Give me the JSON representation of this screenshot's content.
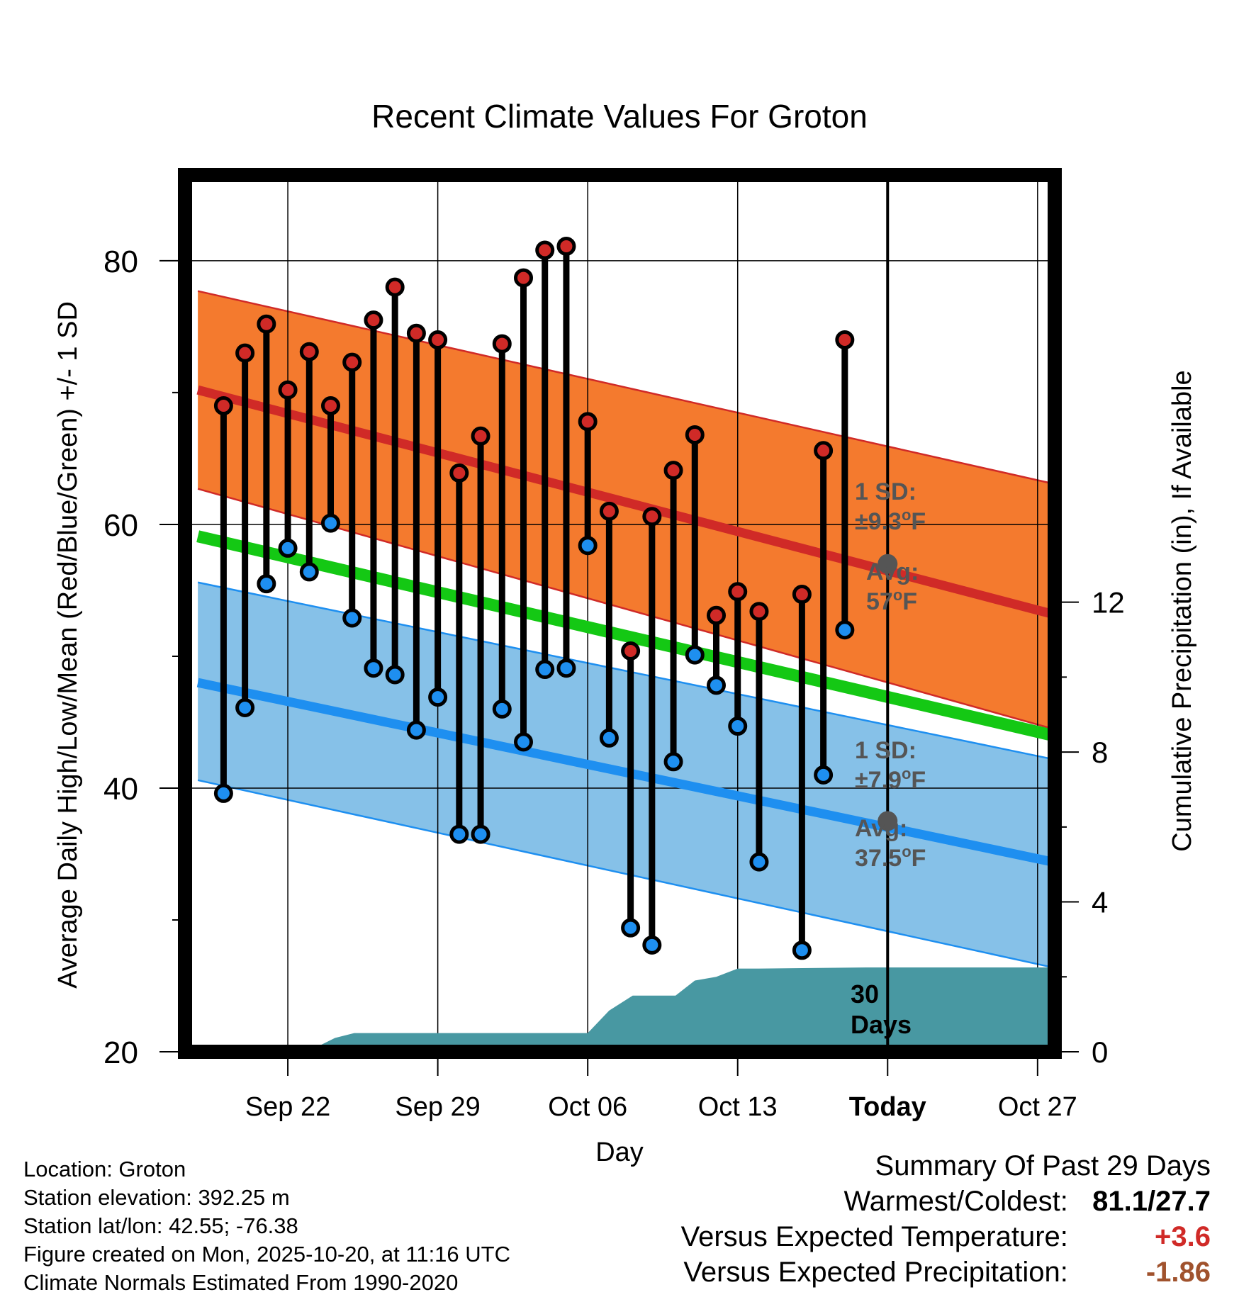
{
  "colors": {
    "high_band": "#f47a2e",
    "high_line": "#d02a27",
    "low_band": "#86c1e8",
    "low_line": "#1e8ff0",
    "mean_line": "#14c814",
    "precip_fill": "#4898a2",
    "high_marker": "#d02a27",
    "low_marker": "#1e8ff0",
    "avg_marker": "#555555",
    "annotation": "#555555",
    "positive": "#d02a27",
    "precip_dev": "#a0522d"
  },
  "chart_data": {
    "type": "line",
    "title": "Recent Climate Values For Groton",
    "xlabel": "Day",
    "ylabel": "Average Daily High/Low/Mean (Red/Blue/Green) +/- 1 SD",
    "y2label": "Cumulative Precipitation (in), If Available",
    "ylim": [
      20,
      86.5
    ],
    "y2lim": [
      0,
      23.4
    ],
    "xlim": [
      -2.8,
      37.8
    ],
    "yticks": [
      "20",
      "40",
      "60",
      "80"
    ],
    "y2ticks": [
      "0",
      "4",
      "8",
      "12"
    ],
    "xticks": [
      {
        "day": 2,
        "label": "Sep 22"
      },
      {
        "day": 9,
        "label": "Sep 29"
      },
      {
        "day": 16,
        "label": "Oct 06"
      },
      {
        "day": 23,
        "label": "Oct 13"
      },
      {
        "day": 30,
        "label": "Today"
      },
      {
        "day": 37,
        "label": "Oct 27"
      }
    ],
    "today_day": 30,
    "normals": {
      "x": [
        -2.2,
        37.7
      ],
      "high_mean": [
        70.2,
        53.2
      ],
      "high_upper": [
        77.7,
        63.1
      ],
      "high_lower": [
        62.7,
        44.5
      ],
      "low_mean": [
        48.0,
        34.4
      ],
      "low_upper": [
        55.6,
        42.2
      ],
      "low_lower": [
        40.6,
        26.4
      ],
      "mean": [
        59.1,
        44.0
      ]
    },
    "observed": {
      "days": [
        -1,
        0,
        1,
        2,
        3,
        4,
        5,
        6,
        7,
        8,
        9,
        10,
        11,
        12,
        13,
        14,
        15,
        16,
        17,
        18,
        19,
        20,
        21,
        22,
        23,
        24,
        25,
        26,
        27,
        28,
        29
      ],
      "high": [
        69.0,
        73.0,
        75.2,
        70.2,
        73.1,
        69.0,
        72.3,
        75.5,
        78.0,
        74.5,
        74.0,
        63.9,
        66.7,
        73.7,
        78.7,
        80.8,
        81.1,
        67.8,
        61.0,
        50.4,
        60.6,
        64.1,
        66.8,
        53.1,
        54.9,
        53.4,
        null,
        54.7,
        65.6,
        74.0,
        null
      ],
      "low": [
        39.6,
        46.1,
        55.5,
        58.2,
        56.4,
        60.1,
        52.9,
        49.1,
        48.6,
        44.4,
        46.9,
        36.5,
        36.5,
        46.0,
        43.5,
        49.0,
        49.1,
        58.4,
        43.8,
        29.4,
        28.1,
        42.0,
        50.1,
        47.8,
        44.7,
        34.4,
        null,
        27.7,
        41.0,
        52.0,
        null
      ]
    },
    "precip": {
      "days": [
        -2.2,
        2.9,
        4.2,
        5.1,
        16.0,
        17.0,
        18.1,
        19.0,
        20.1,
        21.0,
        22.0,
        23.0,
        24.0,
        29.0,
        37.7
      ],
      "values": [
        0,
        0,
        0.37,
        0.5,
        0.5,
        1.1,
        1.5,
        1.5,
        1.5,
        1.9,
        2.0,
        2.22,
        2.22,
        2.25,
        2.25
      ]
    },
    "annotations": {
      "high_sd_label": "1 SD:",
      "high_sd_value": "±9.3",
      "high_avg_label": "Avg:",
      "high_avg_value": "57",
      "high_avg_point": 57,
      "low_sd_label": "1 SD:",
      "low_sd_value": "±7.9",
      "low_avg_label": "Avg:",
      "low_avg_value": "37.5",
      "low_avg_point": 37.5,
      "degree_symbol": "o",
      "unit": "F",
      "days_count": "30",
      "days_word": "Days"
    }
  },
  "info": {
    "location": "Location: Groton",
    "elevation": "Station elevation: 392.25 m",
    "latlon": "Station lat/lon: 42.55; -76.38",
    "created": "Figure created on Mon, 2025-10-20, at 11:16 UTC",
    "normals": "Climate Normals Estimated From 1990-2020"
  },
  "summary": {
    "title": "Summary Of Past 29 Days",
    "warm_cold_label": "Warmest/Coldest:",
    "warm_cold_value": "81.1/27.7",
    "temp_label": "Versus Expected Temperature:",
    "temp_value": "+3.6",
    "precip_label": "Versus Expected Precipitation:",
    "precip_value": "-1.86"
  }
}
